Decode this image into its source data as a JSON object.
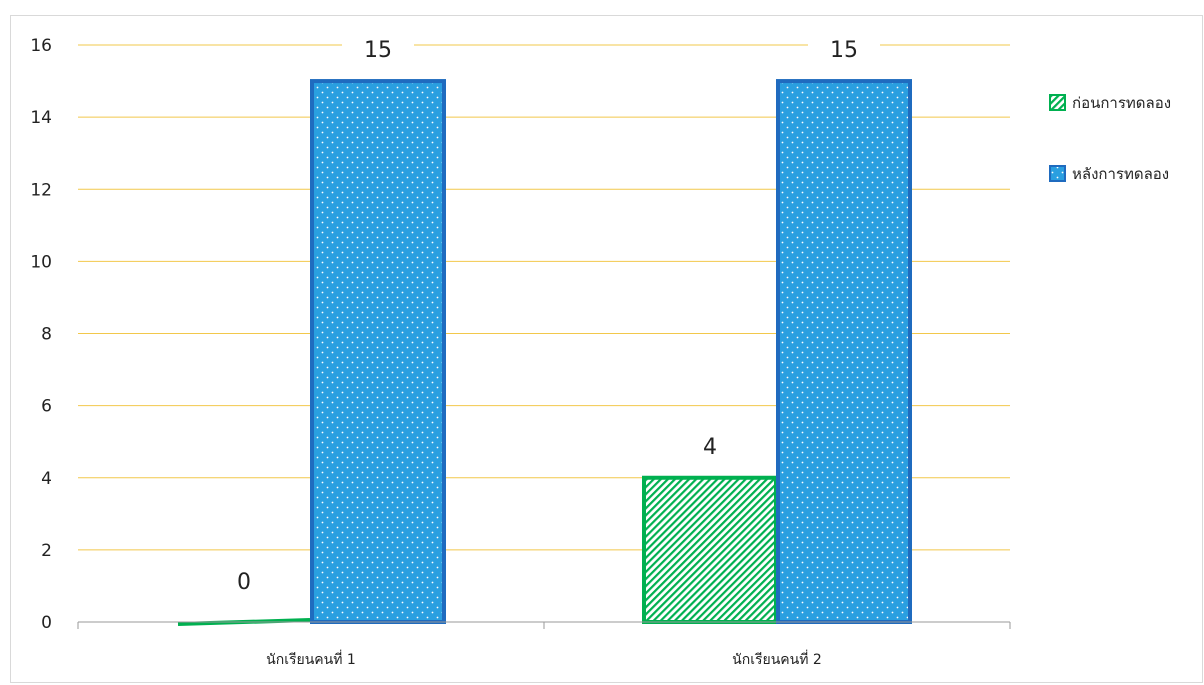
{
  "chart_data": {
    "type": "bar",
    "categories": [
      "นักเรียนคนที่ 1",
      "นักเรียนคนที่ 2"
    ],
    "series": [
      {
        "name": "ก่อนการทดลอง",
        "values": [
          0,
          4
        ]
      },
      {
        "name": "หลังการทดลอง",
        "values": [
          15,
          15
        ]
      }
    ],
    "ylim": [
      0,
      16
    ],
    "yticks": [
      0,
      2,
      4,
      6,
      8,
      10,
      12,
      14,
      16
    ],
    "data_labels": [
      "0",
      "15",
      "4",
      "15"
    ],
    "grid": true,
    "legend_position": "right",
    "colors": {
      "before_fill": "#00b050",
      "before_border": "#00b050",
      "after_fill": "#2a9fe0",
      "after_border": "#1f6bbf",
      "gridline": "#f2c84b",
      "axis": "#9a9a9a"
    }
  }
}
